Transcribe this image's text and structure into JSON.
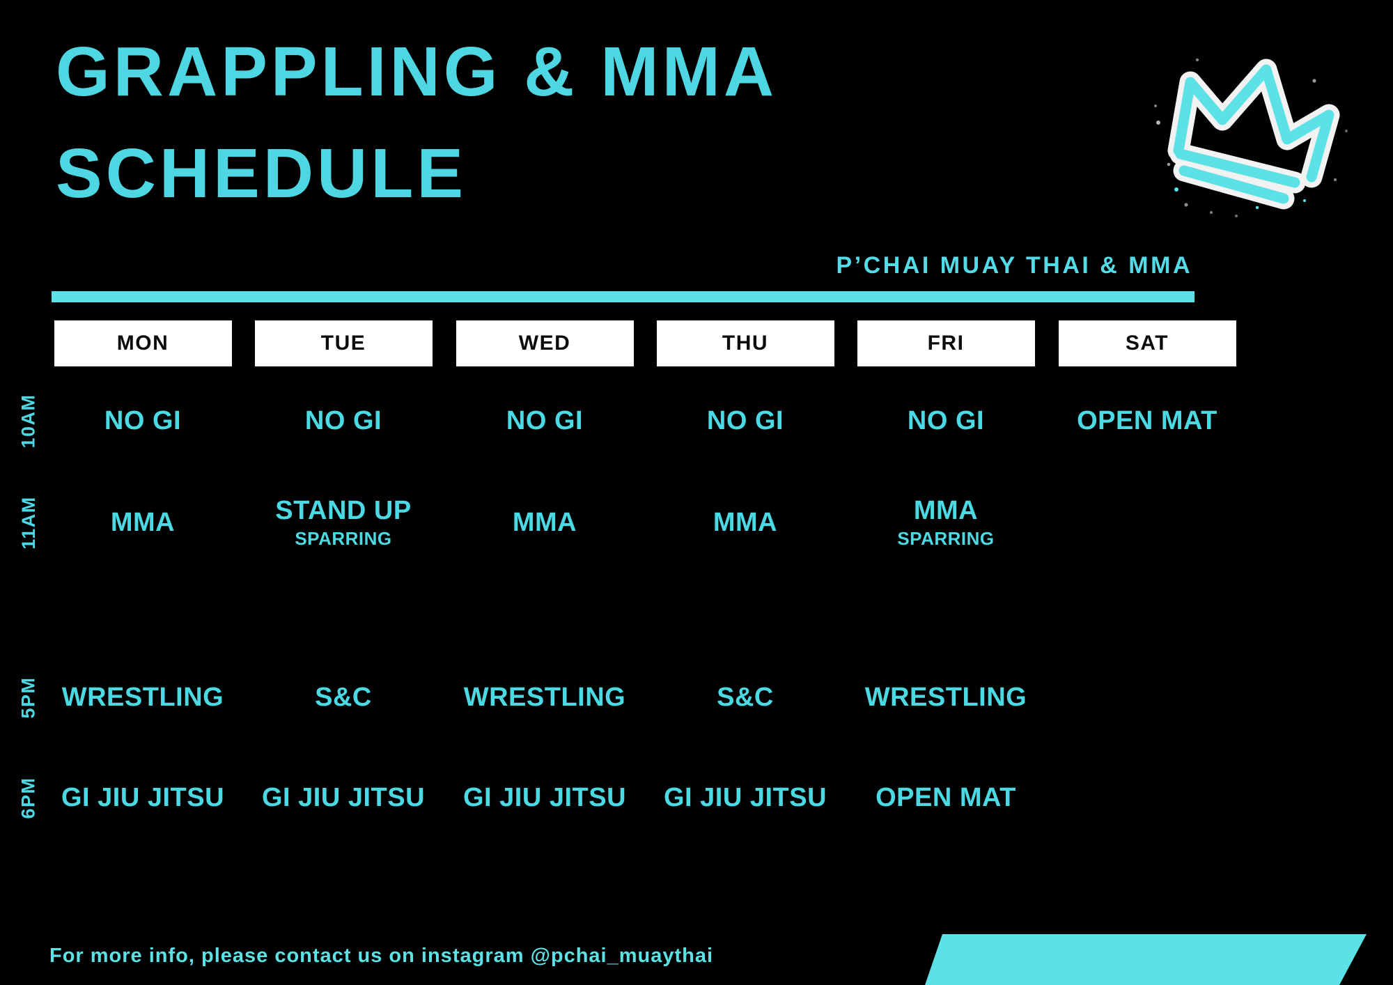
{
  "title": {
    "line1": "GRAPPLING & MMA",
    "line2": "SCHEDULE"
  },
  "brand": "P’CHAI MUAY THAI & MMA",
  "footer": "For more info, please contact us on instagram @pchai_muaythai",
  "colors": {
    "background": "#000000",
    "accent": "#5CE1E6",
    "title_text": "#4ED7E2",
    "cell_text": "#4BD9E4",
    "day_box_bg": "#FFFFFF",
    "day_box_text": "#0C0C0C"
  },
  "icons": {
    "crown": "spray-paint-crown"
  },
  "schedule": {
    "days": [
      "MON",
      "TUE",
      "WED",
      "THU",
      "FRI",
      "SAT"
    ],
    "times": [
      "10AM",
      "11AM",
      "5PM",
      "6PM"
    ],
    "rows": [
      {
        "time": "10AM",
        "cells": [
          {
            "main": "NO GI"
          },
          {
            "main": "NO GI"
          },
          {
            "main": "NO GI"
          },
          {
            "main": "NO GI"
          },
          {
            "main": "NO GI"
          },
          {
            "main": "OPEN MAT"
          }
        ]
      },
      {
        "time": "11AM",
        "cells": [
          {
            "main": "MMA"
          },
          {
            "main": "STAND UP",
            "sub": "SPARRING"
          },
          {
            "main": "MMA"
          },
          {
            "main": "MMA"
          },
          {
            "main": "MMA",
            "sub": "SPARRING"
          },
          {}
        ]
      },
      {
        "time": "5PM",
        "cells": [
          {
            "main": "WRESTLING"
          },
          {
            "main": "S&C"
          },
          {
            "main": "WRESTLING"
          },
          {
            "main": "S&C"
          },
          {
            "main": "WRESTLING"
          },
          {}
        ]
      },
      {
        "time": "6PM",
        "cells": [
          {
            "main": "GI JIU JITSU"
          },
          {
            "main": "GI JIU JITSU"
          },
          {
            "main": "GI JIU JITSU"
          },
          {
            "main": "GI JIU JITSU"
          },
          {
            "main": "OPEN MAT"
          },
          {}
        ]
      }
    ]
  }
}
